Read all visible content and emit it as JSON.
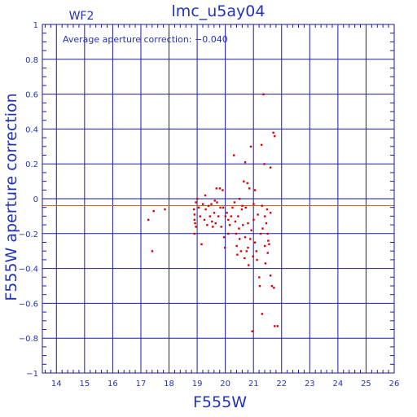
{
  "chart_data": {
    "type": "scatter",
    "title": "lmc_u5ay04",
    "chip_label": "WF2",
    "annotation": "Average aperture correction: −0.040",
    "xlabel": "F555W",
    "ylabel": "F555W aperture correction",
    "xlim": [
      13.5,
      26
    ],
    "ylim": [
      -1,
      1
    ],
    "x_ticks": [
      14,
      15,
      16,
      17,
      18,
      19,
      20,
      21,
      22,
      23,
      24,
      25,
      26
    ],
    "x_tick_labels": [
      "14",
      "15",
      "16",
      "17",
      "18",
      "19",
      "20",
      "21",
      "22",
      "23",
      "24",
      "25",
      "26"
    ],
    "y_ticks": [
      -1,
      -0.8,
      -0.6,
      -0.4,
      -0.2,
      0,
      0.2,
      0.4,
      0.6,
      0.8,
      1
    ],
    "y_tick_labels": [
      "−1",
      "−0.8",
      "−0.6",
      "−0.4",
      "−0.2",
      "0",
      "0.2",
      "0.4",
      "0.6",
      "0.8",
      "1"
    ],
    "grid": true,
    "reference_line": {
      "y": -0.04,
      "color": "#bb6622"
    },
    "colors": {
      "axes": "#1a1aa6",
      "points": "#dd0000",
      "text": "#2233bb"
    },
    "points": [
      [
        17.26,
        -0.12
      ],
      [
        17.4,
        -0.3
      ],
      [
        17.45,
        -0.07
      ],
      [
        17.85,
        -0.06
      ],
      [
        18.9,
        -0.2
      ],
      [
        18.88,
        -0.06
      ],
      [
        18.9,
        -0.09
      ],
      [
        18.9,
        -0.12
      ],
      [
        18.92,
        -0.14
      ],
      [
        18.95,
        -0.16
      ],
      [
        18.95,
        -0.02
      ],
      [
        19.0,
        0.0
      ],
      [
        19.05,
        -0.05
      ],
      [
        19.1,
        -0.1
      ],
      [
        19.15,
        -0.26
      ],
      [
        19.2,
        -0.03
      ],
      [
        19.25,
        -0.12
      ],
      [
        19.28,
        0.02
      ],
      [
        19.3,
        -0.06
      ],
      [
        19.35,
        -0.15
      ],
      [
        19.4,
        -0.04
      ],
      [
        19.45,
        -0.1
      ],
      [
        19.5,
        -0.03
      ],
      [
        19.52,
        -0.13
      ],
      [
        19.55,
        -0.16
      ],
      [
        19.6,
        -0.08
      ],
      [
        19.62,
        -0.01
      ],
      [
        19.65,
        -0.14
      ],
      [
        19.68,
        0.06
      ],
      [
        19.7,
        -0.02
      ],
      [
        19.75,
        -0.1
      ],
      [
        19.8,
        0.06
      ],
      [
        19.82,
        -0.05
      ],
      [
        19.85,
        -0.16
      ],
      [
        19.9,
        0.05
      ],
      [
        19.92,
        -0.05
      ],
      [
        19.95,
        -0.22
      ],
      [
        19.98,
        -0.28
      ],
      [
        20.0,
        -0.1
      ],
      [
        20.05,
        -0.08
      ],
      [
        20.1,
        -0.12
      ],
      [
        20.1,
        -0.2
      ],
      [
        20.15,
        -0.15
      ],
      [
        20.2,
        -0.1
      ],
      [
        20.25,
        -0.05
      ],
      [
        20.3,
        0.25
      ],
      [
        20.32,
        -0.02
      ],
      [
        20.35,
        -0.13
      ],
      [
        20.38,
        -0.2
      ],
      [
        20.4,
        -0.27
      ],
      [
        20.42,
        -0.32
      ],
      [
        20.45,
        -0.1
      ],
      [
        20.48,
        -0.17
      ],
      [
        20.5,
        0.0
      ],
      [
        20.5,
        -0.23
      ],
      [
        20.55,
        -0.3
      ],
      [
        20.58,
        -0.06
      ],
      [
        20.6,
        -0.04
      ],
      [
        20.62,
        -0.15
      ],
      [
        20.65,
        0.1
      ],
      [
        20.68,
        -0.34
      ],
      [
        20.7,
        0.21
      ],
      [
        20.7,
        -0.22
      ],
      [
        20.72,
        -0.05
      ],
      [
        20.75,
        -0.3
      ],
      [
        20.78,
        0.09
      ],
      [
        20.8,
        -0.14
      ],
      [
        20.8,
        -0.28
      ],
      [
        20.82,
        -0.38
      ],
      [
        20.85,
        0.06
      ],
      [
        20.88,
        -0.23
      ],
      [
        20.9,
        0.3
      ],
      [
        20.92,
        -0.18
      ],
      [
        20.95,
        -0.76
      ],
      [
        20.98,
        -0.33
      ],
      [
        21.0,
        -0.03
      ],
      [
        21.0,
        -0.12
      ],
      [
        21.05,
        0.05
      ],
      [
        21.05,
        -0.25
      ],
      [
        21.1,
        -0.3
      ],
      [
        21.12,
        -0.35
      ],
      [
        21.15,
        -0.09
      ],
      [
        21.2,
        -0.45
      ],
      [
        21.22,
        -0.5
      ],
      [
        21.25,
        -0.2
      ],
      [
        21.28,
        0.31
      ],
      [
        21.3,
        -0.04
      ],
      [
        21.3,
        -0.66
      ],
      [
        21.32,
        -0.17
      ],
      [
        21.35,
        0.6
      ],
      [
        21.38,
        0.2
      ],
      [
        21.4,
        -0.1
      ],
      [
        21.4,
        -0.27
      ],
      [
        21.42,
        -0.37
      ],
      [
        21.45,
        -0.14
      ],
      [
        21.48,
        -0.06
      ],
      [
        21.5,
        -0.2
      ],
      [
        21.5,
        -0.31
      ],
      [
        21.52,
        -0.24
      ],
      [
        21.55,
        -0.26
      ],
      [
        21.6,
        0.18
      ],
      [
        21.6,
        -0.08
      ],
      [
        21.6,
        -0.44
      ],
      [
        21.65,
        -0.5
      ],
      [
        21.7,
        0.38
      ],
      [
        21.72,
        -0.51
      ],
      [
        21.75,
        0.36
      ],
      [
        21.75,
        -0.73
      ],
      [
        21.85,
        -0.73
      ]
    ]
  }
}
